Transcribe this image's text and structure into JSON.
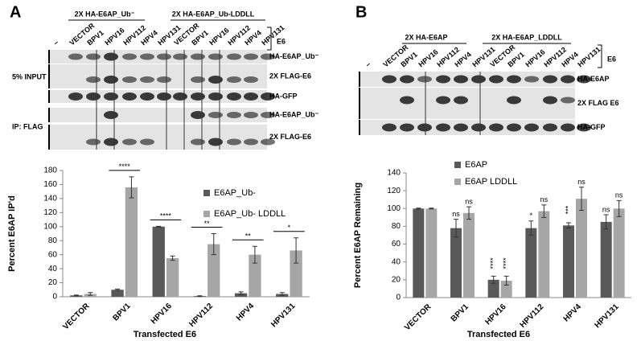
{
  "blot_a": {
    "letter": "A",
    "headers": [
      "2X HA-E6AP_Ub⁻",
      "2X HA-E6AP_Ub-LDDLL"
    ],
    "lanes": [
      "–",
      "VECTOR",
      "BPV1",
      "HPV16",
      "HPV112",
      "HPV4",
      "HPV131",
      "VECTOR",
      "BPV1",
      "HPV16",
      "HPV112",
      "HPV4",
      "HPV131"
    ],
    "e6": "E6",
    "rows": [
      "HA-E6AP_Ub⁻",
      "2X FLAG-E6",
      "HA-GFP",
      "HA-E6AP_Ub⁻",
      "2X FLAG-E6"
    ],
    "groups": [
      "5% INPUT",
      "IP: FLAG"
    ]
  },
  "blot_b": {
    "letter": "B",
    "headers": [
      "2X HA-E6AP",
      "2X HA-E6AP_LDDLL"
    ],
    "lanes": [
      "–",
      "VECTOR",
      "BPV1",
      "HPV16",
      "HPV112",
      "HPV4",
      "HPV131",
      "VECTOR",
      "BPV1",
      "HPV16",
      "HPV112",
      "HPV4",
      "HPV131"
    ],
    "e6": "E6",
    "rows": [
      "HA-E6AP",
      "2X FLAG E6",
      "HA-GFP"
    ]
  },
  "chart_data": [
    {
      "type": "bar",
      "y_label": "Percent E6AP IP'd",
      "x_label": "Transfected E6",
      "categories": [
        "VECTOR",
        "BPV1",
        "HPV16",
        "HPV112",
        "HPV4",
        "HPV131"
      ],
      "series": [
        {
          "name": "E6AP_Ub-",
          "color": "#595959",
          "values": [
            2,
            10,
            100,
            1,
            5,
            4
          ],
          "errors": [
            0.5,
            1,
            0.5,
            0.5,
            2,
            2
          ]
        },
        {
          "name": "E6AP_Ub- LDDLL",
          "color": "#a6a6a6",
          "values": [
            4,
            156,
            55,
            75,
            60,
            66
          ],
          "errors": [
            2,
            15,
            3,
            15,
            12,
            18
          ]
        }
      ],
      "significance": [
        null,
        "****",
        "****",
        "**",
        "**",
        "*"
      ],
      "ylim": [
        0,
        180
      ],
      "yticks": [
        0,
        20,
        40,
        60,
        80,
        100,
        120,
        140,
        160,
        180
      ]
    },
    {
      "type": "bar",
      "y_label": "Percent E6AP Remaining",
      "x_label": "Transfected E6",
      "categories": [
        "VECTOR",
        "BPV1",
        "HPV16",
        "HPV112",
        "HPV4",
        "HPV131"
      ],
      "series": [
        {
          "name": "E6AP",
          "color": "#595959",
          "values": [
            100,
            78,
            20,
            78,
            81,
            85
          ],
          "errors": [
            0.5,
            10,
            4,
            8,
            3,
            8
          ],
          "annotations": [
            null,
            "ns",
            "****",
            "*",
            "***",
            "ns"
          ]
        },
        {
          "name": "E6AP LDDLL",
          "color": "#a6a6a6",
          "values": [
            100,
            95,
            19,
            97,
            111,
            100
          ],
          "errors": [
            0.5,
            7,
            5,
            7,
            13,
            9
          ],
          "annotations": [
            null,
            "ns",
            "****",
            "ns",
            "ns",
            "ns"
          ]
        }
      ],
      "ylim": [
        0,
        140
      ],
      "yticks": [
        0,
        20,
        40,
        60,
        80,
        100,
        120,
        140
      ]
    }
  ]
}
